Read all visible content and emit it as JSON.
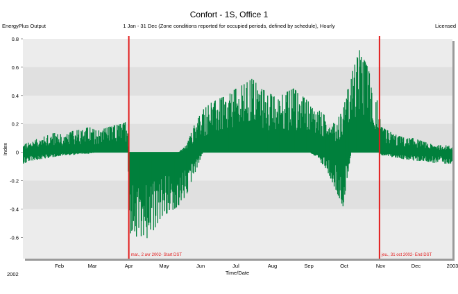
{
  "header": {
    "title": "Confort - 1S, Office 1",
    "subtitle": "1 Jan - 31 Dec (Zone conditions reported for occupied periods, defined by schedule), Hourly",
    "left_label": "EnergyPlus Output",
    "right_label": "Licensed"
  },
  "chart_data": {
    "type": "bar",
    "title": "Confort - 1S, Office 1",
    "xlabel": "Time/Date",
    "ylabel": "Index",
    "ylim": [
      -0.75,
      0.8
    ],
    "yticks": [
      "-0.6",
      "-0.4",
      "-0.2",
      "0",
      "0.2",
      "0.4",
      "0.6",
      "0.8"
    ],
    "ytick_values": [
      -0.6,
      -0.4,
      -0.2,
      0,
      0.2,
      0.4,
      0.6,
      0.8
    ],
    "xlim": [
      0,
      365
    ],
    "xticks": [
      "2002",
      "Feb",
      "Mar",
      "Apr",
      "May",
      "Jun",
      "Jul",
      "Aug",
      "Sep",
      "Oct",
      "Nov",
      "Dec",
      "2003"
    ],
    "xtick_values": [
      0,
      31,
      59,
      90,
      120,
      151,
      181,
      212,
      243,
      273,
      304,
      334,
      365
    ],
    "grid": true,
    "series_color": "#00803c",
    "series": [
      {
        "x": [
          0,
          7,
          14,
          21,
          28,
          35,
          42,
          49,
          56,
          63,
          70,
          77,
          84,
          89,
          90,
          97,
          104,
          111,
          118,
          125,
          132,
          139,
          146,
          153,
          160,
          167,
          174,
          181,
          188,
          195,
          202,
          209,
          216,
          223,
          230,
          237,
          244,
          251,
          258,
          265,
          272,
          279,
          286,
          293,
          300,
          303,
          304,
          311,
          318,
          325,
          332,
          339,
          346,
          353,
          360,
          365
        ],
        "high": [
          0.05,
          0.08,
          0.1,
          0.12,
          0.14,
          0.12,
          0.15,
          0.16,
          0.18,
          0.15,
          0.17,
          0.19,
          0.2,
          0.22,
          0.0,
          0.0,
          0.0,
          0.0,
          0.0,
          0.0,
          0.0,
          0.05,
          0.2,
          0.3,
          0.35,
          0.38,
          0.4,
          0.45,
          0.48,
          0.52,
          0.45,
          0.42,
          0.38,
          0.42,
          0.45,
          0.4,
          0.35,
          0.3,
          0.25,
          0.2,
          0.3,
          0.55,
          0.72,
          0.6,
          0.4,
          0.3,
          0.18,
          0.15,
          0.12,
          0.1,
          0.1,
          0.08,
          0.06,
          0.05,
          0.05,
          0.04
        ],
        "low": [
          -0.08,
          -0.06,
          -0.05,
          -0.04,
          -0.03,
          -0.02,
          -0.02,
          -0.01,
          -0.01,
          0.0,
          0.0,
          0.0,
          0.0,
          0.0,
          -0.55,
          -0.65,
          -0.62,
          -0.55,
          -0.45,
          -0.42,
          -0.38,
          -0.3,
          -0.15,
          0.0,
          0.0,
          0.0,
          0.0,
          0.0,
          0.0,
          0.0,
          0.0,
          0.0,
          0.0,
          0.0,
          0.0,
          0.0,
          0.0,
          -0.05,
          -0.12,
          -0.25,
          -0.38,
          0.0,
          0.0,
          0.0,
          0.0,
          0.0,
          -0.02,
          -0.03,
          -0.04,
          -0.05,
          -0.06,
          -0.06,
          -0.07,
          -0.08,
          -0.08,
          -0.08
        ]
      }
    ],
    "annotations": [
      {
        "x": 90,
        "label": "mar., 2 avr 2002- Start DST",
        "color": "#e21b1b"
      },
      {
        "x": 303,
        "label": "jeu., 31 oct 2002- End DST",
        "color": "#e21b1b"
      }
    ]
  }
}
